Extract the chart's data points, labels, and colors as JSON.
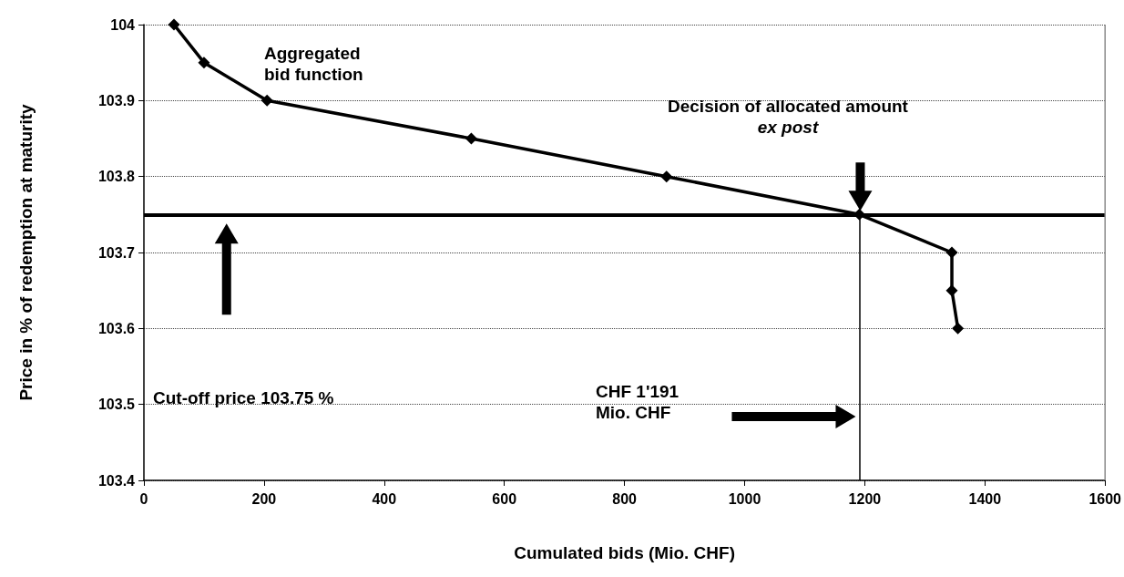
{
  "chart_data": {
    "type": "line",
    "xlabel": "Cumulated bids (Mio. CHF)",
    "ylabel": "Price in % of redemption at maturity",
    "x": [
      50,
      100,
      205,
      545,
      870,
      1191,
      1345,
      1345,
      1355
    ],
    "series": [
      {
        "color": "#000000",
        "values": [
          104,
          103.95,
          103.9,
          103.85,
          103.8,
          103.75,
          103.7,
          103.65,
          103.6
        ]
      }
    ],
    "xlim": [
      0,
      1600
    ],
    "xticks": [
      0,
      200,
      400,
      600,
      800,
      1000,
      1200,
      1400,
      1600
    ],
    "ylim": [
      103.4,
      104
    ],
    "yticks": [
      103.4,
      103.5,
      103.6,
      103.7,
      103.8,
      103.9,
      104
    ],
    "grid": "y",
    "marker": "diamond",
    "line_style": "solid",
    "ref_lines": [
      {
        "axis": "y",
        "value": 103.75,
        "color": "#000000"
      },
      {
        "axis": "x",
        "value": 1191,
        "color": "#000000"
      }
    ],
    "annotations": [
      "Aggregated\nbid function",
      "Decision of allocated amount\nex post",
      "Cut-off price 103.75 %",
      "CHF 1'191\nMio. CHF"
    ]
  }
}
